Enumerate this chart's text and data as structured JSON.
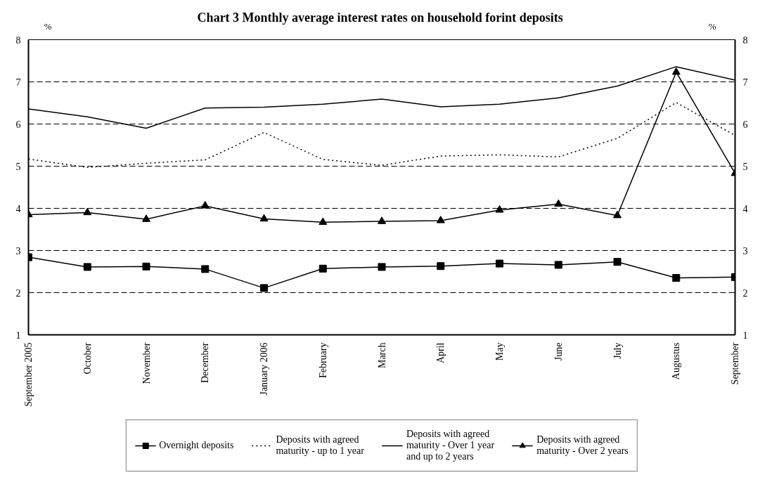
{
  "chart_data": {
    "type": "line",
    "title": "Chart 3 Monthly average interest rates on household forint deposits",
    "ylabel": "%",
    "y2label": "%",
    "categories": [
      "September 2005",
      "October",
      "November",
      "December",
      "January 2006",
      "February",
      "March",
      "April",
      "May",
      "June",
      "July",
      "Augustus",
      "September"
    ],
    "ylim": [
      1,
      8
    ],
    "yticks": [
      1,
      2,
      3,
      4,
      5,
      6,
      7,
      8
    ],
    "y2lim": [
      1,
      8
    ],
    "y2ticks": [
      1,
      2,
      3,
      4,
      5,
      6,
      7,
      8
    ],
    "grid": "y",
    "legend": "bottom",
    "series": [
      {
        "name": "Overnight deposits",
        "color": "#000000",
        "marker": "square",
        "line_style": "solid",
        "values": [
          2.84,
          2.61,
          2.62,
          2.56,
          2.11,
          2.57,
          2.61,
          2.63,
          2.69,
          2.66,
          2.73,
          2.35,
          2.37
        ]
      },
      {
        "name": "Deposits with agreed maturity - up to 1 year",
        "color": "#000000",
        "marker": "none",
        "line_style": "dotted",
        "values": [
          5.17,
          4.97,
          5.07,
          5.15,
          5.8,
          5.16,
          5.02,
          5.24,
          5.27,
          5.22,
          5.66,
          6.51,
          5.73
        ]
      },
      {
        "name": "Deposits with agreed maturity - Over 1 year and up to 2 years",
        "color": "#000000",
        "marker": "none",
        "line_style": "solid",
        "values": [
          6.36,
          6.17,
          5.9,
          6.38,
          6.4,
          6.47,
          6.59,
          6.41,
          6.47,
          6.62,
          6.9,
          7.36,
          7.04
        ]
      },
      {
        "name": "Deposits with agreed maturity - Over 2 years",
        "color": "#000000",
        "marker": "triangle",
        "line_style": "solid",
        "values": [
          3.85,
          3.9,
          3.74,
          4.06,
          3.75,
          3.67,
          3.69,
          3.71,
          3.96,
          4.1,
          3.83,
          7.23,
          4.83
        ]
      }
    ]
  }
}
